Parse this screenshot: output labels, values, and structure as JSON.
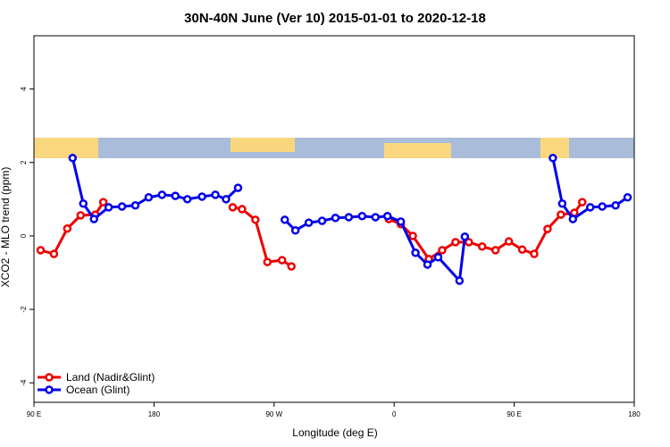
{
  "chart_data": {
    "type": "line",
    "title": "30N-40N June (Ver 10)   2015-01-01 to 2020-12-18",
    "x_label": "Longitude (deg E)",
    "y_label": "XCO2 - MLO trend (ppm)",
    "xlim": [
      90,
      540
    ],
    "xticks": [
      {
        "value": 90,
        "label": "90 E"
      },
      {
        "value": 180,
        "label": "180"
      },
      {
        "value": 270,
        "label": "90 W"
      },
      {
        "value": 360,
        "label": "0"
      },
      {
        "value": 450,
        "label": "90 E"
      },
      {
        "value": 540,
        "label": "180"
      }
    ],
    "ylim": [
      -4.53,
      5.45
    ],
    "yticks": [
      -4,
      -2,
      0,
      2,
      4
    ],
    "legend": "bottom-left",
    "series": [
      {
        "name": "Land (Nadir&Glint)",
        "color": "#ee0000",
        "x": [
          95,
          105,
          115,
          125,
          136,
          142,
          200,
          239,
          246,
          256,
          265,
          276,
          283,
          320,
          356,
          365,
          374,
          386,
          396,
          406,
          416,
          426,
          436,
          446,
          456,
          465,
          475,
          485,
          495,
          501
        ],
        "values": [
          -0.39,
          -0.49,
          0.2,
          0.56,
          0.58,
          0.92,
          null,
          0.78,
          0.73,
          0.44,
          -0.71,
          -0.66,
          -0.83,
          null,
          0.46,
          0.32,
          0,
          -0.63,
          -0.39,
          -0.17,
          -0.17,
          -0.29,
          -0.39,
          -0.15,
          -0.37,
          -0.49,
          0.19,
          0.58,
          0.63,
          0.92
        ]
      },
      {
        "name": "Ocean (Glint)",
        "color": "#0000ee",
        "x": [
          119,
          127,
          135,
          146,
          156,
          166,
          176,
          186,
          196,
          205,
          216,
          226,
          234,
          243,
          260,
          278,
          286,
          296,
          306,
          316,
          326,
          336,
          346,
          355,
          365,
          376,
          385,
          393,
          409,
          413,
          450,
          479,
          486,
          494,
          507,
          516,
          526,
          535
        ],
        "values": [
          2.12,
          0.88,
          0.46,
          0.78,
          0.8,
          0.83,
          1.05,
          1.12,
          1.09,
          1.0,
          1.07,
          1.12,
          1.0,
          1.31,
          null,
          0.44,
          0.15,
          0.36,
          0.41,
          0.49,
          0.51,
          0.54,
          0.51,
          0.54,
          0.39,
          -0.46,
          -0.78,
          -0.58,
          -1.22,
          -0.02,
          null,
          2.12,
          0.88,
          0.46,
          0.78,
          0.8,
          0.83,
          1.05
        ]
      }
    ]
  }
}
